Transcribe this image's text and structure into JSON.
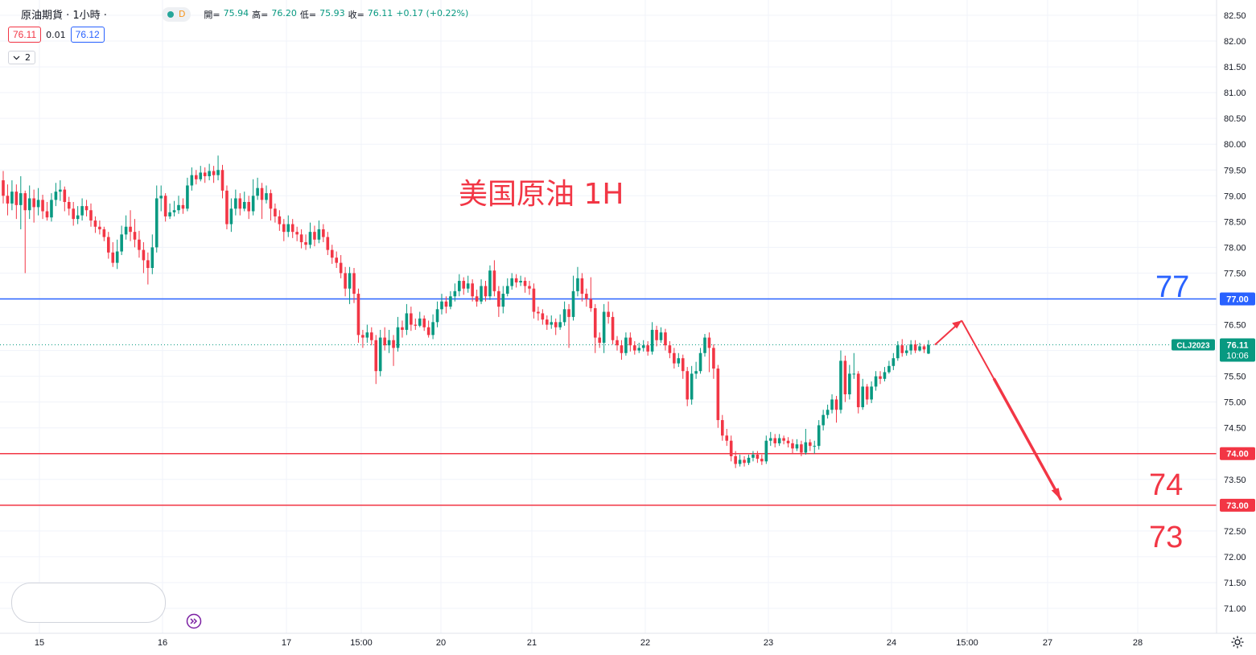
{
  "header": {
    "symbol": "原油期貨 · 1小時 ·",
    "interval_badge": "D",
    "open_label": "開=",
    "open_value": "75.94",
    "high_label": "高=",
    "high_value": "76.20",
    "low_label": "低=",
    "low_value": "75.93",
    "close_label": "收=",
    "close_value": "76.11",
    "change": "+0.17 (+0.22%)"
  },
  "quote": {
    "bid": "76.11",
    "spread": "0.01",
    "ask": "76.12"
  },
  "collapse_count": "2",
  "annotations": {
    "title": "美国原油 1H",
    "level_77": "77",
    "level_74": "74",
    "level_73": "73"
  },
  "colors": {
    "up": "#089981",
    "down": "#f23645",
    "blue": "#2962ff",
    "grid": "#f0f3fa",
    "axis_text": "#131722"
  },
  "chart_data": {
    "type": "candlestick",
    "title": "美国原油 1H",
    "ylim": [
      70.85,
      82.65
    ],
    "y_ticks": [
      "82.50",
      "82.00",
      "81.50",
      "81.00",
      "80.50",
      "80.00",
      "79.50",
      "79.00",
      "78.50",
      "78.00",
      "77.50",
      "77.00",
      "76.50",
      "76.00",
      "75.50",
      "75.00",
      "74.50",
      "74.00",
      "73.50",
      "73.00",
      "72.50",
      "72.00",
      "71.50",
      "71.00"
    ],
    "x_ticks": [
      "15",
      "16",
      "17",
      "15:00",
      "20",
      "21",
      "22",
      "23",
      "24",
      "15:00",
      "27",
      "28"
    ],
    "last_price": {
      "value": "76.11",
      "symbol": "CLJ2023",
      "countdown": "10:06"
    },
    "horizontal_lines": [
      {
        "value": 77.0,
        "label": "77.00",
        "color": "#2962ff"
      },
      {
        "value": 74.0,
        "label": "74.00",
        "color": "#f23645"
      },
      {
        "value": 73.0,
        "label": "73.00",
        "color": "#f23645"
      }
    ],
    "projection": [
      {
        "t": 0,
        "v": 76.11
      },
      {
        "t": 3.5,
        "v": 76.58
      },
      {
        "t": 16.5,
        "v": 73.1
      }
    ],
    "candles": [
      [
        79.3,
        79.0,
        79.48,
        78.85
      ],
      [
        79.0,
        78.85,
        79.22,
        78.62
      ],
      [
        78.85,
        79.08,
        79.3,
        78.72
      ],
      [
        79.08,
        78.82,
        79.22,
        78.55
      ],
      [
        78.82,
        79.05,
        79.38,
        78.35
      ],
      [
        79.05,
        78.72,
        79.1,
        77.5
      ],
      [
        78.72,
        78.95,
        79.2,
        78.55
      ],
      [
        78.95,
        78.78,
        79.12,
        78.48
      ],
      [
        78.78,
        78.92,
        79.15,
        78.62
      ],
      [
        78.92,
        78.7,
        79.02,
        78.55
      ],
      [
        78.7,
        78.58,
        78.88,
        78.52
      ],
      [
        78.58,
        78.92,
        79.05,
        78.5
      ],
      [
        78.92,
        79.08,
        79.25,
        78.8
      ],
      [
        79.08,
        79.12,
        79.3,
        78.9
      ],
      [
        79.12,
        78.88,
        79.18,
        78.7
      ],
      [
        78.88,
        78.75,
        78.98,
        78.62
      ],
      [
        78.75,
        78.55,
        78.88,
        78.42
      ],
      [
        78.55,
        78.62,
        78.8,
        78.45
      ],
      [
        78.62,
        78.8,
        78.95,
        78.52
      ],
      [
        78.8,
        78.72,
        78.92,
        78.6
      ],
      [
        78.72,
        78.52,
        78.85,
        78.4
      ],
      [
        78.52,
        78.4,
        78.6,
        78.28
      ],
      [
        78.4,
        78.35,
        78.52,
        78.25
      ],
      [
        78.35,
        78.2,
        78.4,
        78.12
      ],
      [
        78.2,
        77.9,
        78.3,
        77.78
      ],
      [
        77.9,
        77.7,
        78.1,
        77.62
      ],
      [
        77.7,
        77.92,
        78.15,
        77.58
      ],
      [
        77.92,
        78.25,
        78.42,
        77.85
      ],
      [
        78.25,
        78.4,
        78.62,
        78.15
      ],
      [
        78.4,
        78.3,
        78.72,
        78.12
      ],
      [
        78.3,
        78.15,
        78.55,
        78.0
      ],
      [
        78.15,
        77.95,
        78.32,
        77.8
      ],
      [
        77.95,
        77.75,
        78.1,
        77.5
      ],
      [
        77.75,
        77.6,
        77.9,
        77.28
      ],
      [
        77.6,
        78.0,
        78.25,
        77.48
      ],
      [
        78.0,
        78.95,
        79.2,
        77.9
      ],
      [
        78.95,
        79.0,
        79.2,
        78.7
      ],
      [
        79.0,
        78.6,
        79.05,
        78.5
      ],
      [
        78.6,
        78.68,
        78.85,
        78.55
      ],
      [
        78.68,
        78.72,
        78.9,
        78.6
      ],
      [
        78.72,
        78.82,
        79.0,
        78.65
      ],
      [
        78.82,
        78.75,
        78.95,
        78.65
      ],
      [
        78.75,
        79.2,
        79.35,
        78.7
      ],
      [
        79.2,
        79.4,
        79.55,
        79.1
      ],
      [
        79.4,
        79.32,
        79.5,
        79.22
      ],
      [
        79.32,
        79.45,
        79.58,
        79.28
      ],
      [
        79.45,
        79.38,
        79.55,
        79.25
      ],
      [
        79.38,
        79.48,
        79.62,
        79.3
      ],
      [
        79.48,
        79.4,
        79.58,
        79.25
      ],
      [
        79.4,
        79.5,
        79.78,
        79.3
      ],
      [
        79.5,
        79.1,
        79.6,
        78.95
      ],
      [
        79.1,
        78.45,
        79.2,
        78.35
      ],
      [
        78.45,
        78.75,
        78.95,
        78.3
      ],
      [
        78.75,
        78.95,
        79.12,
        78.62
      ],
      [
        78.95,
        78.75,
        79.05,
        78.62
      ],
      [
        78.75,
        78.88,
        79.08,
        78.7
      ],
      [
        78.88,
        78.7,
        79.0,
        78.55
      ],
      [
        78.7,
        79.0,
        79.32,
        78.62
      ],
      [
        79.0,
        79.15,
        79.35,
        78.92
      ],
      [
        79.15,
        78.92,
        79.25,
        78.55
      ],
      [
        78.92,
        79.05,
        79.2,
        78.85
      ],
      [
        79.05,
        78.75,
        79.12,
        78.52
      ],
      [
        78.75,
        78.6,
        78.85,
        78.48
      ],
      [
        78.6,
        78.45,
        78.72,
        78.32
      ],
      [
        78.45,
        78.3,
        78.55,
        78.12
      ],
      [
        78.3,
        78.45,
        78.62,
        78.2
      ],
      [
        78.45,
        78.3,
        78.55,
        78.18
      ],
      [
        78.3,
        78.25,
        78.4,
        78.12
      ],
      [
        78.25,
        78.1,
        78.35,
        77.98
      ],
      [
        78.1,
        78.05,
        78.25,
        77.95
      ],
      [
        78.05,
        78.3,
        78.48,
        77.98
      ],
      [
        78.3,
        78.15,
        78.42,
        78.02
      ],
      [
        78.15,
        78.35,
        78.52,
        78.08
      ],
      [
        78.35,
        78.2,
        78.45,
        78.1
      ],
      [
        78.2,
        77.95,
        78.3,
        77.85
      ],
      [
        77.95,
        77.8,
        78.05,
        77.68
      ],
      [
        77.8,
        77.7,
        77.92,
        77.6
      ],
      [
        77.7,
        77.5,
        77.85,
        77.4
      ],
      [
        77.5,
        77.2,
        77.62,
        77.05
      ],
      [
        77.2,
        77.5,
        77.62,
        76.9
      ],
      [
        77.5,
        77.1,
        77.6,
        76.92
      ],
      [
        77.1,
        76.3,
        77.2,
        76.15
      ],
      [
        76.3,
        76.25,
        76.4,
        76.05
      ],
      [
        76.25,
        76.35,
        76.5,
        76.15
      ],
      [
        76.35,
        76.2,
        76.45,
        76.1
      ],
      [
        76.2,
        75.6,
        76.3,
        75.35
      ],
      [
        75.6,
        76.25,
        76.4,
        75.5
      ],
      [
        76.25,
        76.1,
        76.45,
        76.0
      ],
      [
        76.1,
        76.2,
        76.4,
        75.95
      ],
      [
        76.2,
        76.05,
        76.3,
        75.7
      ],
      [
        76.05,
        76.45,
        76.65,
        75.98
      ],
      [
        76.45,
        76.4,
        76.58,
        76.25
      ],
      [
        76.4,
        76.72,
        76.9,
        76.3
      ],
      [
        76.72,
        76.5,
        76.85,
        76.38
      ],
      [
        76.5,
        76.48,
        76.62,
        76.4
      ],
      [
        76.48,
        76.62,
        76.75,
        76.45
      ],
      [
        76.62,
        76.45,
        76.68,
        76.38
      ],
      [
        76.45,
        76.3,
        76.58,
        76.25
      ],
      [
        76.3,
        76.55,
        76.7,
        76.22
      ],
      [
        76.55,
        76.8,
        76.95,
        76.45
      ],
      [
        76.8,
        76.95,
        77.1,
        76.7
      ],
      [
        76.95,
        76.85,
        77.05,
        76.72
      ],
      [
        76.85,
        77.05,
        77.15,
        76.8
      ],
      [
        77.05,
        77.15,
        77.3,
        76.95
      ],
      [
        77.15,
        77.35,
        77.48,
        77.05
      ],
      [
        77.35,
        77.2,
        77.42,
        77.08
      ],
      [
        77.2,
        77.3,
        77.45,
        77.12
      ],
      [
        77.3,
        77.05,
        77.38,
        76.95
      ],
      [
        77.05,
        76.95,
        77.18,
        76.85
      ],
      [
        76.95,
        77.25,
        77.38,
        76.9
      ],
      [
        77.25,
        77.05,
        77.35,
        76.95
      ],
      [
        77.05,
        77.55,
        77.65,
        76.98
      ],
      [
        77.55,
        77.15,
        77.75,
        77.05
      ],
      [
        77.15,
        76.85,
        77.25,
        76.65
      ],
      [
        76.85,
        77.1,
        77.25,
        76.72
      ],
      [
        77.1,
        77.25,
        77.4,
        77.05
      ],
      [
        77.25,
        77.4,
        77.5,
        77.18
      ],
      [
        77.4,
        77.32,
        77.48,
        77.22
      ],
      [
        77.32,
        77.35,
        77.45,
        77.25
      ],
      [
        77.35,
        77.25,
        77.42,
        77.12
      ],
      [
        77.25,
        77.2,
        77.35,
        77.08
      ],
      [
        77.2,
        76.75,
        77.3,
        76.62
      ],
      [
        76.75,
        76.72,
        76.85,
        76.58
      ],
      [
        76.72,
        76.6,
        76.8,
        76.5
      ],
      [
        76.6,
        76.5,
        76.68,
        76.4
      ],
      [
        76.5,
        76.55,
        76.68,
        76.42
      ],
      [
        76.55,
        76.45,
        76.62,
        76.3
      ],
      [
        76.45,
        76.55,
        76.7,
        76.4
      ],
      [
        76.55,
        76.8,
        76.95,
        76.48
      ],
      [
        76.8,
        76.65,
        76.9,
        76.05
      ],
      [
        76.65,
        77.15,
        77.45,
        76.58
      ],
      [
        77.15,
        77.4,
        77.62,
        77.05
      ],
      [
        77.4,
        77.1,
        77.5,
        76.95
      ],
      [
        77.1,
        77.0,
        77.2,
        76.85
      ],
      [
        77.0,
        76.82,
        77.42,
        76.75
      ],
      [
        76.82,
        76.25,
        76.9,
        75.95
      ],
      [
        76.25,
        76.15,
        76.35,
        76.05
      ],
      [
        76.15,
        76.75,
        76.9,
        75.95
      ],
      [
        76.75,
        76.65,
        76.95,
        76.52
      ],
      [
        76.65,
        76.2,
        76.75,
        76.12
      ],
      [
        76.2,
        76.1,
        76.28,
        76.0
      ],
      [
        76.1,
        75.95,
        76.2,
        75.82
      ],
      [
        75.95,
        76.25,
        76.35,
        75.9
      ],
      [
        76.25,
        76.1,
        76.35,
        75.98
      ],
      [
        76.1,
        76.0,
        76.18,
        75.92
      ],
      [
        76.0,
        76.05,
        76.15,
        75.95
      ],
      [
        76.05,
        76.1,
        76.2,
        75.98
      ],
      [
        76.1,
        75.98,
        76.18,
        75.9
      ],
      [
        75.98,
        76.4,
        76.55,
        75.92
      ],
      [
        76.4,
        76.2,
        76.48,
        76.08
      ],
      [
        76.2,
        76.35,
        76.45,
        76.15
      ],
      [
        76.35,
        76.1,
        76.42,
        76.0
      ],
      [
        76.1,
        75.95,
        76.18,
        75.85
      ],
      [
        75.95,
        75.75,
        76.05,
        75.65
      ],
      [
        75.75,
        75.85,
        75.95,
        75.68
      ],
      [
        75.85,
        75.6,
        75.92,
        75.45
      ],
      [
        75.6,
        75.05,
        75.68,
        74.92
      ],
      [
        75.05,
        75.55,
        75.7,
        74.95
      ],
      [
        75.55,
        75.6,
        75.78,
        75.45
      ],
      [
        75.6,
        75.95,
        76.05,
        75.55
      ],
      [
        75.95,
        76.25,
        76.32,
        75.88
      ],
      [
        76.25,
        76.05,
        76.35,
        75.58
      ],
      [
        76.05,
        75.65,
        76.12,
        75.45
      ],
      [
        75.65,
        74.65,
        75.72,
        74.5
      ],
      [
        74.65,
        74.35,
        74.75,
        74.25
      ],
      [
        74.35,
        74.25,
        74.48,
        74.15
      ],
      [
        74.25,
        73.95,
        74.35,
        73.85
      ],
      [
        73.95,
        73.8,
        74.05,
        73.72
      ],
      [
        73.8,
        73.88,
        73.98,
        73.75
      ],
      [
        73.88,
        73.82,
        73.95,
        73.75
      ],
      [
        73.82,
        73.92,
        73.98,
        73.78
      ],
      [
        73.92,
        73.98,
        74.05,
        73.85
      ],
      [
        73.98,
        73.9,
        74.05,
        73.82
      ],
      [
        73.9,
        73.85,
        73.98,
        73.78
      ],
      [
        73.85,
        74.25,
        74.35,
        73.8
      ],
      [
        74.25,
        74.3,
        74.42,
        74.15
      ],
      [
        74.3,
        74.2,
        74.38,
        74.12
      ],
      [
        74.2,
        74.3,
        74.38,
        74.15
      ],
      [
        74.3,
        74.25,
        74.35,
        74.18
      ],
      [
        74.25,
        74.2,
        74.32,
        74.12
      ],
      [
        74.2,
        74.1,
        74.28,
        74.0
      ],
      [
        74.1,
        74.18,
        74.28,
        74.05
      ],
      [
        74.18,
        74.02,
        74.25,
        73.95
      ],
      [
        74.02,
        74.22,
        74.48,
        73.98
      ],
      [
        74.22,
        74.15,
        74.28,
        74.05
      ],
      [
        74.15,
        74.15,
        74.25,
        74.0
      ],
      [
        74.15,
        74.55,
        74.65,
        74.08
      ],
      [
        74.55,
        74.75,
        74.85,
        74.45
      ],
      [
        74.75,
        74.85,
        74.95,
        74.68
      ],
      [
        74.85,
        75.05,
        75.15,
        74.78
      ],
      [
        75.05,
        74.85,
        75.12,
        74.6
      ],
      [
        74.85,
        75.8,
        76.0,
        74.78
      ],
      [
        75.8,
        75.15,
        75.9,
        75.0
      ],
      [
        75.15,
        75.55,
        75.72,
        75.05
      ],
      [
        75.55,
        75.55,
        75.95,
        75.45
      ],
      [
        75.55,
        74.9,
        75.6,
        74.78
      ],
      [
        74.9,
        75.3,
        75.45,
        74.85
      ],
      [
        75.3,
        75.05,
        75.35,
        74.95
      ],
      [
        75.05,
        75.3,
        75.4,
        74.98
      ],
      [
        75.3,
        75.5,
        75.6,
        75.22
      ],
      [
        75.5,
        75.45,
        75.6,
        75.35
      ],
      [
        75.45,
        75.58,
        75.68,
        75.4
      ],
      [
        75.58,
        75.7,
        75.8,
        75.55
      ],
      [
        75.7,
        75.85,
        75.95,
        75.62
      ],
      [
        75.85,
        76.1,
        76.18,
        75.8
      ],
      [
        76.1,
        75.95,
        76.22,
        75.88
      ],
      [
        75.95,
        76.0,
        76.1,
        75.9
      ],
      [
        76.0,
        76.12,
        76.2,
        75.92
      ],
      [
        76.12,
        76.0,
        76.2,
        75.95
      ],
      [
        76.0,
        76.08,
        76.15,
        75.98
      ],
      [
        76.08,
        76.02,
        76.12,
        75.95
      ],
      [
        75.94,
        76.11,
        76.2,
        75.93
      ]
    ]
  }
}
